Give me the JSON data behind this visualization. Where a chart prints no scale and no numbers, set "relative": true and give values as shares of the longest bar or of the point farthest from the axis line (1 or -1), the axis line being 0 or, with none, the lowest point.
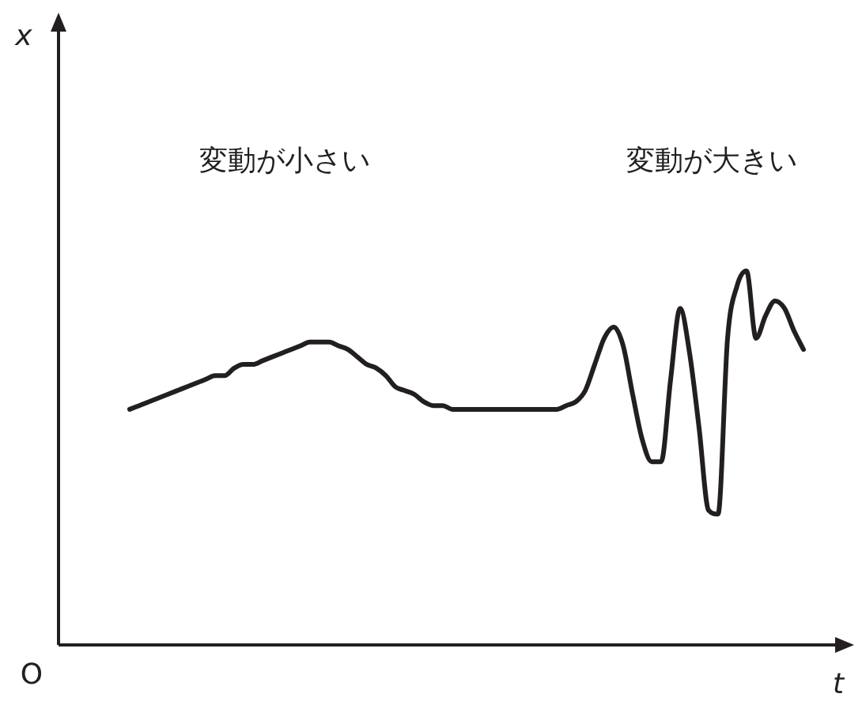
{
  "chart_data": {
    "type": "line",
    "relative": true,
    "xlabel": "t",
    "color": "#231f20",
    "marker": "none",
    "line_style": "solid",
    "legend": false,
    "annotations": [
      "変動が小さい",
      "変動が大きい",
      "O",
      "x"
    ],
    "categories": [
      null,
      null,
      null,
      null,
      null,
      null,
      null,
      null,
      null,
      null,
      null,
      null,
      null,
      null,
      null,
      null,
      null,
      null,
      null,
      null,
      null,
      null,
      null,
      null,
      null,
      null,
      null,
      null,
      null,
      null,
      null,
      null,
      null,
      null,
      null,
      null,
      null,
      null,
      null,
      null,
      null,
      null,
      null,
      null,
      null,
      null,
      null,
      null,
      null,
      null,
      null,
      null,
      null,
      null,
      null,
      null,
      null,
      null,
      null,
      null,
      null,
      null,
      null,
      null,
      null,
      null,
      null,
      null,
      null,
      null,
      null,
      null
    ],
    "values": [
      0.63,
      0.64,
      0.65,
      0.66,
      0.67,
      0.68,
      0.69,
      0.7,
      0.71,
      0.72,
      0.72,
      0.74,
      0.75,
      0.75,
      0.76,
      0.77,
      0.78,
      0.79,
      0.8,
      0.81,
      0.81,
      0.81,
      0.8,
      0.79,
      0.77,
      0.75,
      0.74,
      0.72,
      0.69,
      0.68,
      0.67,
      0.65,
      0.64,
      0.64,
      0.63,
      0.63,
      0.63,
      0.63,
      0.63,
      0.63,
      0.63,
      0.63,
      0.63,
      0.63,
      0.63,
      0.63,
      0.64,
      0.65,
      0.68,
      0.75,
      0.82,
      0.85,
      0.8,
      0.67,
      0.55,
      0.49,
      0.49,
      0.71,
      0.9,
      0.78,
      0.58,
      0.36,
      0.35,
      0.82,
      0.96,
      1,
      0.82,
      0.88,
      0.92,
      0.9,
      0.84,
      0.79
    ]
  }
}
